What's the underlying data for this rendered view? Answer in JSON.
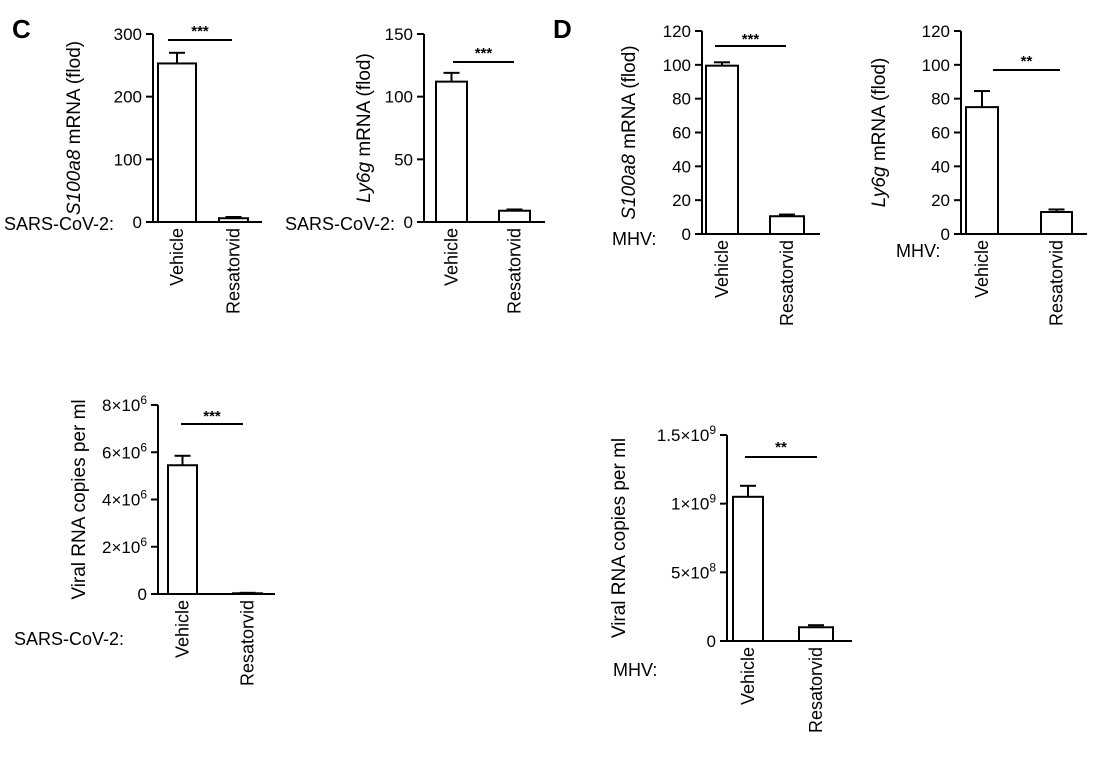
{
  "panels": [
    {
      "letter": "C",
      "color_letter": "#000000"
    },
    {
      "letter": "D",
      "color_letter": "#000000"
    }
  ],
  "chart_data": [
    {
      "type": "bar",
      "panel": "C",
      "condition_label": "SARS-CoV-2:",
      "ylabel_italic": "S100a8",
      "ylabel_rest": " mRNA (flod)",
      "categories": [
        "Vehicle",
        "Resatorvid"
      ],
      "values": [
        253,
        6
      ],
      "errors": [
        17,
        2
      ],
      "ylim": [
        0,
        300
      ],
      "yticks": [
        "0",
        "100",
        "200",
        "300"
      ],
      "significance": "***",
      "bar_fill": "#ffffff",
      "bar_stroke": "#000000"
    },
    {
      "type": "bar",
      "panel": "C",
      "condition_label": "SARS-CoV-2:",
      "ylabel_italic": "Ly6g",
      "ylabel_rest": " mRNA (flod)",
      "categories": [
        "Vehicle",
        "Resatorvid"
      ],
      "values": [
        112,
        9
      ],
      "errors": [
        7,
        1
      ],
      "ylim": [
        0,
        150
      ],
      "yticks": [
        "0",
        "50",
        "100",
        "150"
      ],
      "significance": "***",
      "bar_fill": "#ffffff",
      "bar_stroke": "#000000"
    },
    {
      "type": "bar",
      "panel": "D",
      "condition_label": "MHV:",
      "ylabel_italic": "S100a8",
      "ylabel_rest": " mRNA (flod)",
      "categories": [
        "Vehicle",
        "Resatorvid"
      ],
      "values": [
        99.5,
        10.5
      ],
      "errors": [
        2.0,
        1.0
      ],
      "ylim": [
        0,
        120
      ],
      "yticks": [
        "0",
        "20",
        "40",
        "60",
        "80",
        "100",
        "120"
      ],
      "significance": "***",
      "bar_fill": "#ffffff",
      "bar_stroke": "#000000"
    },
    {
      "type": "bar",
      "panel": "D",
      "condition_label": "MHV:",
      "ylabel_italic": "Ly6g",
      "ylabel_rest": " mRNA (flod)",
      "categories": [
        "Vehicle",
        "Resatorvid"
      ],
      "values": [
        75,
        13
      ],
      "errors": [
        9.5,
        1.5
      ],
      "ylim": [
        0,
        120
      ],
      "yticks": [
        "0",
        "20",
        "40",
        "60",
        "80",
        "100",
        "120"
      ],
      "significance": "**",
      "bar_fill": "#ffffff",
      "bar_stroke": "#000000"
    },
    {
      "type": "bar",
      "panel": "C",
      "condition_label": "SARS-CoV-2:",
      "ylabel_italic": "",
      "ylabel_rest": "Viral RNA copies per ml",
      "categories": [
        "Vehicle",
        "Resatorvid"
      ],
      "values": [
        5450000,
        30000
      ],
      "errors": [
        400000,
        20000
      ],
      "ylim": [
        0,
        8000000
      ],
      "yticks": [
        {
          "base": "0",
          "exp": ""
        },
        {
          "base": "2×10",
          "exp": "6"
        },
        {
          "base": "4×10",
          "exp": "6"
        },
        {
          "base": "6×10",
          "exp": "6"
        },
        {
          "base": "8×10",
          "exp": "6"
        }
      ],
      "significance": "***",
      "bar_fill": "#ffffff",
      "bar_stroke": "#000000"
    },
    {
      "type": "bar",
      "panel": "D",
      "condition_label": "MHV:",
      "ylabel_italic": "",
      "ylabel_rest": "Viral RNA copies per ml",
      "categories": [
        "Vehicle",
        "Resatorvid"
      ],
      "values": [
        1050000000,
        100000000
      ],
      "errors": [
        80000000,
        15000000
      ],
      "ylim": [
        0,
        1500000000
      ],
      "yticks": [
        {
          "base": "0",
          "exp": ""
        },
        {
          "base": "5×10",
          "exp": "8"
        },
        {
          "base": "1×10",
          "exp": "9"
        },
        {
          "base": "1.5×10",
          "exp": "9"
        }
      ],
      "significance": "**",
      "bar_fill": "#ffffff",
      "bar_stroke": "#000000"
    }
  ]
}
